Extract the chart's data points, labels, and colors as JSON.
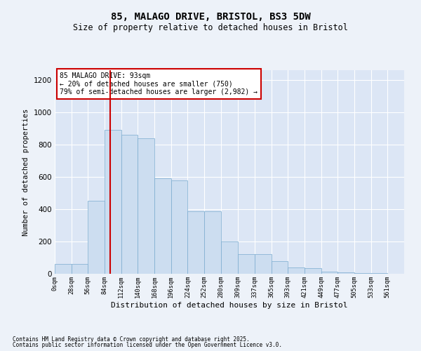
{
  "title1": "85, MALAGO DRIVE, BRISTOL, BS3 5DW",
  "title2": "Size of property relative to detached houses in Bristol",
  "xlabel": "Distribution of detached houses by size in Bristol",
  "ylabel": "Number of detached properties",
  "bar_color": "#ccddf0",
  "bar_edge_color": "#7aabcf",
  "background_color": "#dce6f5",
  "grid_color": "#ffffff",
  "vline_color": "#cc0000",
  "vline_x": 93,
  "bin_edges": [
    0,
    28,
    56,
    84,
    112,
    140,
    168,
    196,
    224,
    252,
    280,
    309,
    337,
    365,
    393,
    421,
    449,
    477,
    505,
    533,
    561,
    589
  ],
  "bar_heights": [
    60,
    60,
    450,
    890,
    860,
    840,
    590,
    580,
    385,
    385,
    200,
    120,
    120,
    80,
    40,
    35,
    15,
    10,
    5,
    5,
    2
  ],
  "ylim": [
    0,
    1260
  ],
  "yticks": [
    0,
    200,
    400,
    600,
    800,
    1000,
    1200
  ],
  "xtick_labels": [
    "0sqm",
    "28sqm",
    "56sqm",
    "84sqm",
    "112sqm",
    "140sqm",
    "168sqm",
    "196sqm",
    "224sqm",
    "252sqm",
    "280sqm",
    "309sqm",
    "337sqm",
    "365sqm",
    "393sqm",
    "421sqm",
    "449sqm",
    "477sqm",
    "505sqm",
    "533sqm",
    "561sqm"
  ],
  "annotation_text": "85 MALAGO DRIVE: 93sqm\n← 20% of detached houses are smaller (750)\n79% of semi-detached houses are larger (2,982) →",
  "footnote1": "Contains HM Land Registry data © Crown copyright and database right 2025.",
  "footnote2": "Contains public sector information licensed under the Open Government Licence v3.0.",
  "fig_bg": "#edf2f9"
}
